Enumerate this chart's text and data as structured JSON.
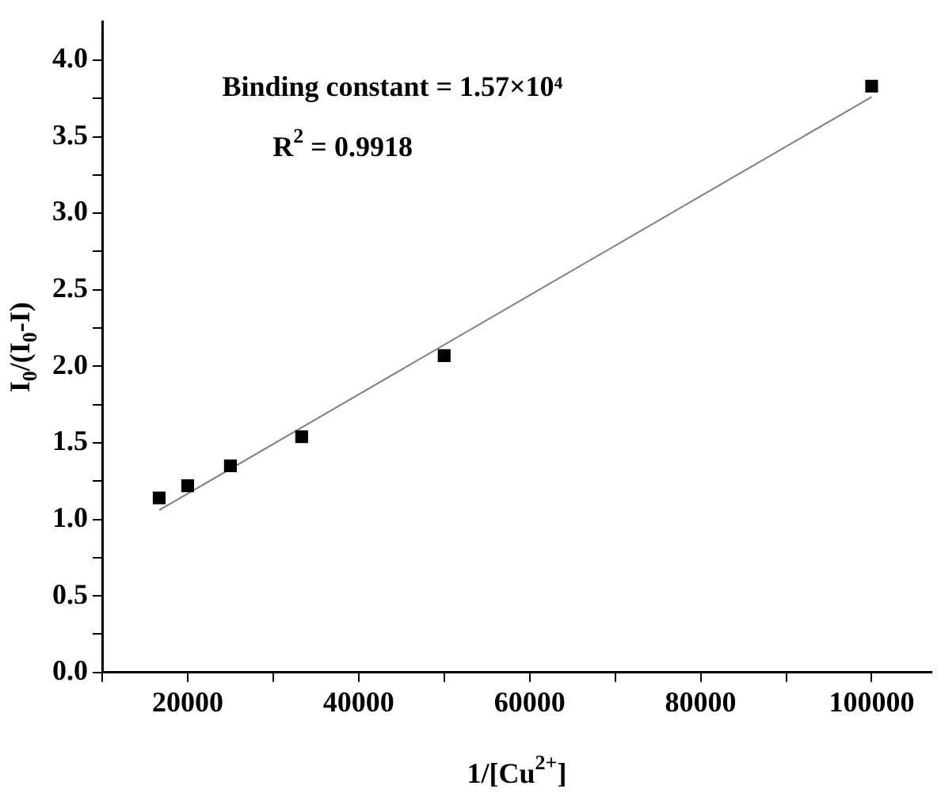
{
  "chart_data": {
    "type": "scatter",
    "xlabel": "1/[Cu$^{2+}$]",
    "ylabel": "I$_{0}$/(I$_{0}$-I)",
    "annotations": [
      "Binding constant = 1.57×10⁴",
      "R$^{2}$ = 0.9918"
    ],
    "x": [
      16667,
      20000,
      25000,
      33333,
      50000,
      100000
    ],
    "series": [
      {
        "color": "#000000",
        "values": [
          1.14,
          1.22,
          1.35,
          1.54,
          2.07,
          3.83
        ]
      },
      {
        "type": "line",
        "marker": "none",
        "color": "#808080",
        "x": [
          16667,
          100000
        ],
        "values": [
          1.06,
          3.76
        ]
      }
    ],
    "marker": "square",
    "xlim": [
      10000,
      107000
    ],
    "xticks": [
      {
        "value": 10000,
        "label": null
      },
      20000,
      {
        "value": 30000,
        "label": null
      },
      40000,
      {
        "value": 50000,
        "label": null
      },
      60000,
      {
        "value": 70000,
        "label": null
      },
      80000,
      {
        "value": 90000,
        "label": null
      },
      100000
    ],
    "ylim": [
      0,
      4.25
    ],
    "yticks": [
      {
        "value": 0,
        "label": "0.0"
      },
      {
        "value": 0.25,
        "label": null
      },
      {
        "value": 0.5,
        "label": "0.5"
      },
      {
        "value": 0.75,
        "label": null
      },
      {
        "value": 1,
        "label": "1.0"
      },
      {
        "value": 1.25,
        "label": null
      },
      {
        "value": 1.5,
        "label": "1.5"
      },
      {
        "value": 1.75,
        "label": null
      },
      {
        "value": 2,
        "label": "2.0"
      },
      {
        "value": 2.25,
        "label": null
      },
      {
        "value": 2.5,
        "label": "2.5"
      },
      {
        "value": 2.75,
        "label": null
      },
      {
        "value": 3,
        "label": "3.0"
      },
      {
        "value": 3.25,
        "label": null
      },
      {
        "value": 3.5,
        "label": "3.5"
      },
      {
        "value": 3.75,
        "label": null
      },
      {
        "value": 4,
        "label": "4.0"
      }
    ]
  }
}
